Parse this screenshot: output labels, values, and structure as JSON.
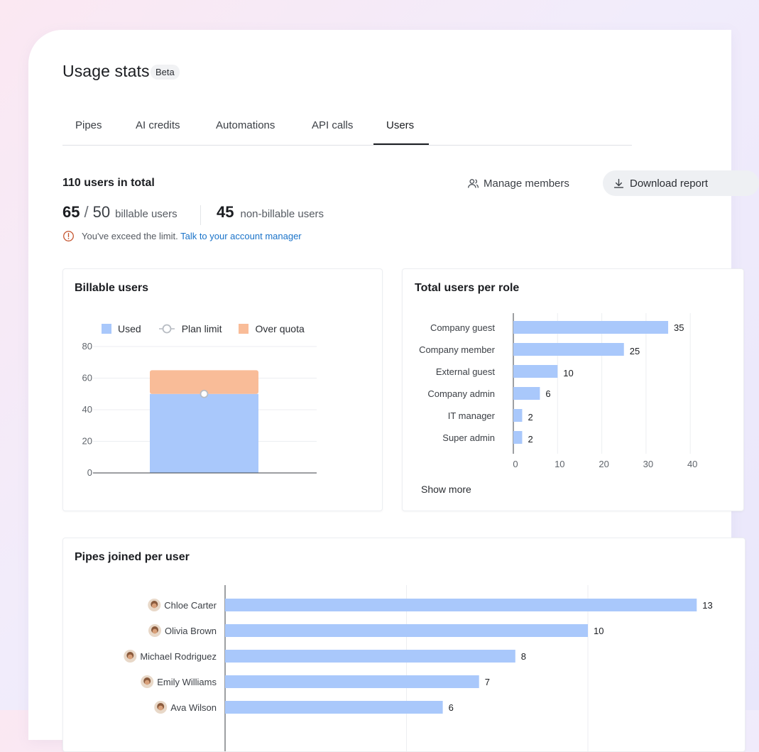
{
  "header": {
    "title": "Usage stats",
    "badge": "Beta"
  },
  "tabs": [
    {
      "label": "Pipes",
      "active": false
    },
    {
      "label": "AI credits",
      "active": false
    },
    {
      "label": "Automations",
      "active": false
    },
    {
      "label": "API calls",
      "active": false
    },
    {
      "label": "Users",
      "active": true
    }
  ],
  "summary": {
    "total": "110 users in total",
    "billable_used": "65",
    "billable_limit": "50",
    "billable_label": "billable users",
    "nonbillable_count": "45",
    "nonbillable_label": "non-billable users",
    "warning_text": "You've exceed the limit.",
    "warning_link": "Talk to your account manager",
    "manage_label": "Manage members",
    "download_label": "Download report"
  },
  "colors": {
    "used": "#a9c8fb",
    "over_quota": "#f9bc98",
    "bar": "#a9c8fb",
    "warning": "#c4532d",
    "link": "#1a73c9"
  },
  "billable_card": {
    "title": "Billable users",
    "legend": [
      "Used",
      "Plan limit",
      "Over quota"
    ]
  },
  "roles_card": {
    "title": "Total users per role",
    "show_more": "Show more"
  },
  "pipes_card": {
    "title": "Pipes joined per user"
  },
  "chart_data": [
    {
      "type": "bar",
      "title": "Billable users",
      "categories": [
        ""
      ],
      "series": [
        {
          "name": "Used",
          "values": [
            50
          ]
        },
        {
          "name": "Over quota",
          "values": [
            15
          ]
        }
      ],
      "plan_limit": 50,
      "ylim": [
        0,
        80
      ],
      "yticks": [
        0,
        20,
        40,
        60,
        80
      ],
      "legend": "top",
      "grid": true
    },
    {
      "type": "bar",
      "orientation": "horizontal",
      "title": "Total users per role",
      "categories": [
        "Company guest",
        "Company member",
        "External guest",
        "Company admin",
        "IT manager",
        "Super admin"
      ],
      "values": [
        35,
        25,
        10,
        6,
        2,
        2
      ],
      "xlim": [
        0,
        40
      ],
      "xticks": [
        0,
        10,
        20,
        30,
        40
      ],
      "grid": true
    },
    {
      "type": "bar",
      "orientation": "horizontal",
      "title": "Pipes joined per user",
      "categories": [
        "Chloe Carter",
        "Olivia Brown",
        "Michael Rodriguez",
        "Emily Williams",
        "Ava Wilson"
      ],
      "values": [
        13,
        10,
        8,
        7,
        6
      ],
      "grid": true
    }
  ]
}
